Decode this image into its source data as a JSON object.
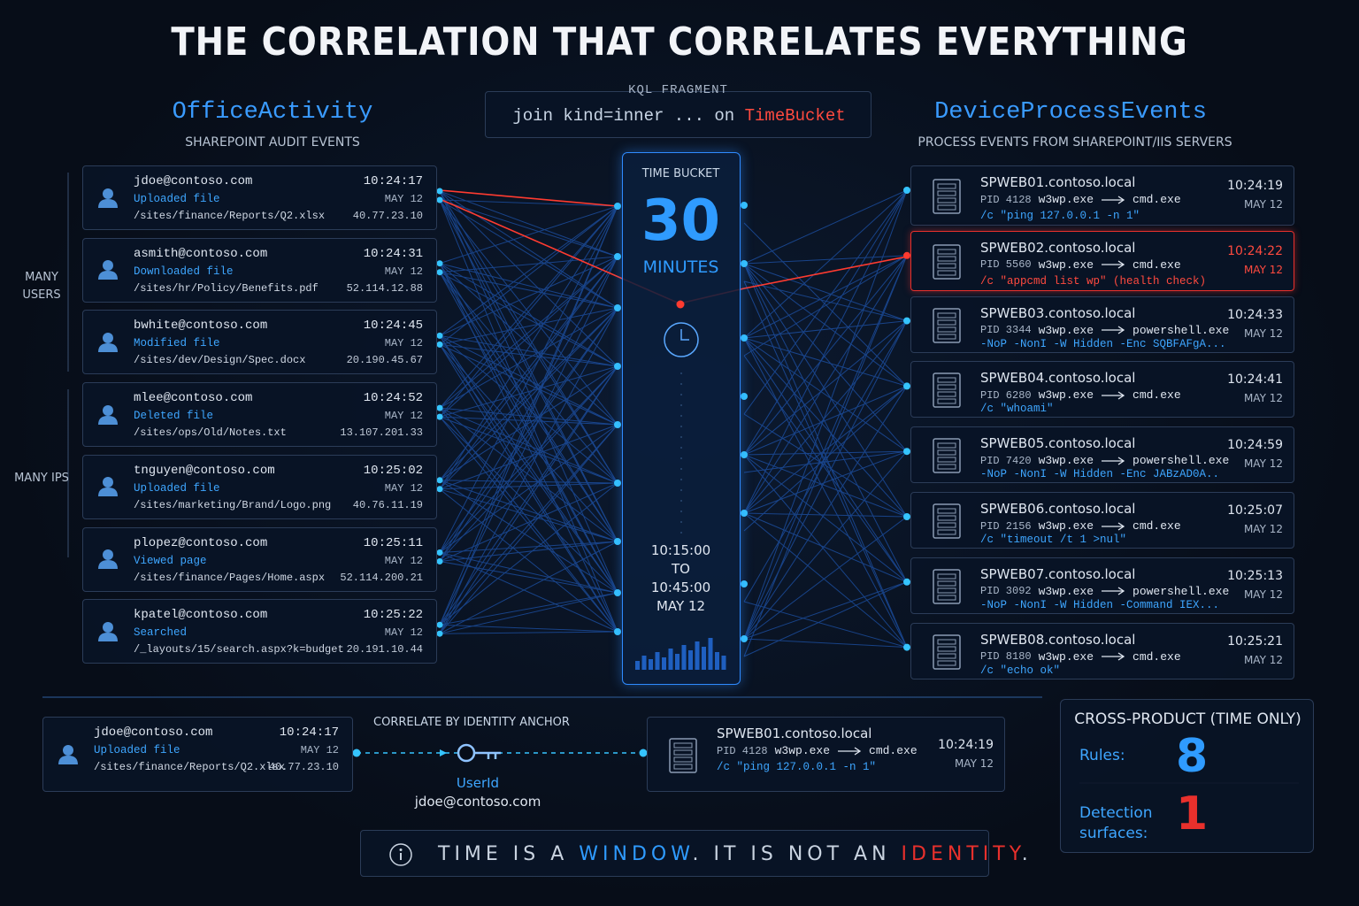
{
  "title": "THE CORRELATION THAT CORRELATES EVERYTHING",
  "kql": {
    "label": "KQL FRAGMENT",
    "code": "join kind=inner ... on ",
    "key": "TimeBucket"
  },
  "left": {
    "title": "OfficeActivity",
    "subtitle": "SHAREPOINT AUDIT EVENTS",
    "side_labels": [
      "MANY USERS",
      "MANY IPS"
    ],
    "events": [
      {
        "user": "jdoe@contoso.com",
        "action": "Uploaded file",
        "path": "/sites/finance/Reports/Q2.xlsx",
        "time": "10:24:17",
        "date": "MAY 12",
        "ip": "40.77.23.10"
      },
      {
        "user": "asmith@contoso.com",
        "action": "Downloaded file",
        "path": "/sites/hr/Policy/Benefits.pdf",
        "time": "10:24:31",
        "date": "MAY 12",
        "ip": "52.114.12.88"
      },
      {
        "user": "bwhite@contoso.com",
        "action": "Modified file",
        "path": "/sites/dev/Design/Spec.docx",
        "time": "10:24:45",
        "date": "MAY 12",
        "ip": "20.190.45.67"
      },
      {
        "user": "mlee@contoso.com",
        "action": "Deleted file",
        "path": "/sites/ops/Old/Notes.txt",
        "time": "10:24:52",
        "date": "MAY 12",
        "ip": "13.107.201.33"
      },
      {
        "user": "tnguyen@contoso.com",
        "action": "Uploaded file",
        "path": "/sites/marketing/Brand/Logo.png",
        "time": "10:25:02",
        "date": "MAY 12",
        "ip": "40.76.11.19"
      },
      {
        "user": "plopez@contoso.com",
        "action": "Viewed page",
        "path": "/sites/finance/Pages/Home.aspx",
        "time": "10:25:11",
        "date": "MAY 12",
        "ip": "52.114.200.21"
      },
      {
        "user": "kpatel@contoso.com",
        "action": "Searched",
        "path": "/_layouts/15/search.aspx?k=budget",
        "time": "10:25:22",
        "date": "MAY 12",
        "ip": "20.191.10.44"
      }
    ]
  },
  "bucket": {
    "label": "TIME BUCKET",
    "value": "30",
    "unit": "MINUTES",
    "start": "10:15:00",
    "to": "TO",
    "end": "10:45:00",
    "date": "MAY 12"
  },
  "right": {
    "title": "DeviceProcessEvents",
    "subtitle": "PROCESS EVENTS FROM SHAREPOINT/IIS SERVERS",
    "events": [
      {
        "host": "SPWEB01.contoso.local",
        "pid": "PID 4128",
        "process": "w3wp.exe",
        "child": "cmd.exe",
        "cmd": "/c \"ping 127.0.0.1 -n 1\"",
        "time": "10:24:19",
        "date": "MAY 12"
      },
      {
        "host": "SPWEB02.contoso.local",
        "pid": "PID 5560",
        "process": "w3wp.exe",
        "child": "cmd.exe",
        "cmd": "/c \"appcmd list wp\" (health check)",
        "time": "10:24:22",
        "date": "MAY 12",
        "alert": true
      },
      {
        "host": "SPWEB03.contoso.local",
        "pid": "PID 3344",
        "process": "w3wp.exe",
        "child": "powershell.exe",
        "cmd": "-NoP -NonI -W Hidden -Enc SQBFAFgA...",
        "time": "10:24:33",
        "date": "MAY 12"
      },
      {
        "host": "SPWEB04.contoso.local",
        "pid": "PID 6280",
        "process": "w3wp.exe",
        "child": "cmd.exe",
        "cmd": "/c \"whoami\"",
        "time": "10:24:41",
        "date": "MAY 12"
      },
      {
        "host": "SPWEB05.contoso.local",
        "pid": "PID 7420",
        "process": "w3wp.exe",
        "child": "powershell.exe",
        "cmd": "-NoP -NonI -W Hidden -Enc JABzAD0A..",
        "time": "10:24:59",
        "date": "MAY 12"
      },
      {
        "host": "SPWEB06.contoso.local",
        "pid": "PID 2156",
        "process": "w3wp.exe",
        "child": "cmd.exe",
        "cmd": "/c \"timeout /t 1 >nul\"",
        "time": "10:25:07",
        "date": "MAY 12"
      },
      {
        "host": "SPWEB07.contoso.local",
        "pid": "PID 3092",
        "process": "w3wp.exe",
        "child": "powershell.exe",
        "cmd": "-NoP -NonI -W Hidden -Command IEX...",
        "time": "10:25:13",
        "date": "MAY 12"
      },
      {
        "host": "SPWEB08.contoso.local",
        "pid": "PID 8180",
        "process": "w3wp.exe",
        "child": "cmd.exe",
        "cmd": "/c \"echo ok\"",
        "time": "10:25:21",
        "date": "MAY 12"
      }
    ]
  },
  "anchor": {
    "label": "CORRELATE BY IDENTITY ANCHOR",
    "left": {
      "user": "jdoe@contoso.com",
      "action": "Uploaded file",
      "path": "/sites/finance/Reports/Q2.xlsx",
      "time": "10:24:17",
      "date": "MAY 12",
      "ip": "40.77.23.10"
    },
    "key_label": "UserId",
    "key_value": "jdoe@contoso.com",
    "right": {
      "host": "SPWEB01.contoso.local",
      "pid": "PID 4128",
      "process": "w3wp.exe",
      "child": "cmd.exe",
      "cmd": "/c \"ping 127.0.0.1 -n 1\"",
      "time": "10:24:19",
      "date": "MAY 12"
    }
  },
  "stats": {
    "title": "CROSS-PRODUCT (TIME ONLY)",
    "rows": [
      {
        "label": "Rules:",
        "value": 8,
        "color": "#2f9bff"
      },
      {
        "label": "Detection surfaces:",
        "value": 1,
        "color": "#e8302c"
      }
    ]
  },
  "footer": {
    "parts": [
      {
        "text": "TIME IS A ",
        "color": "#c9d3e0"
      },
      {
        "text": "WINDOW",
        "color": "#2f9bff"
      },
      {
        "text": ". IT IS NOT AN ",
        "color": "#c9d3e0"
      },
      {
        "text": "IDENTITY",
        "color": "#e8302c"
      },
      {
        "text": ".",
        "color": "#c9d3e0"
      }
    ]
  }
}
